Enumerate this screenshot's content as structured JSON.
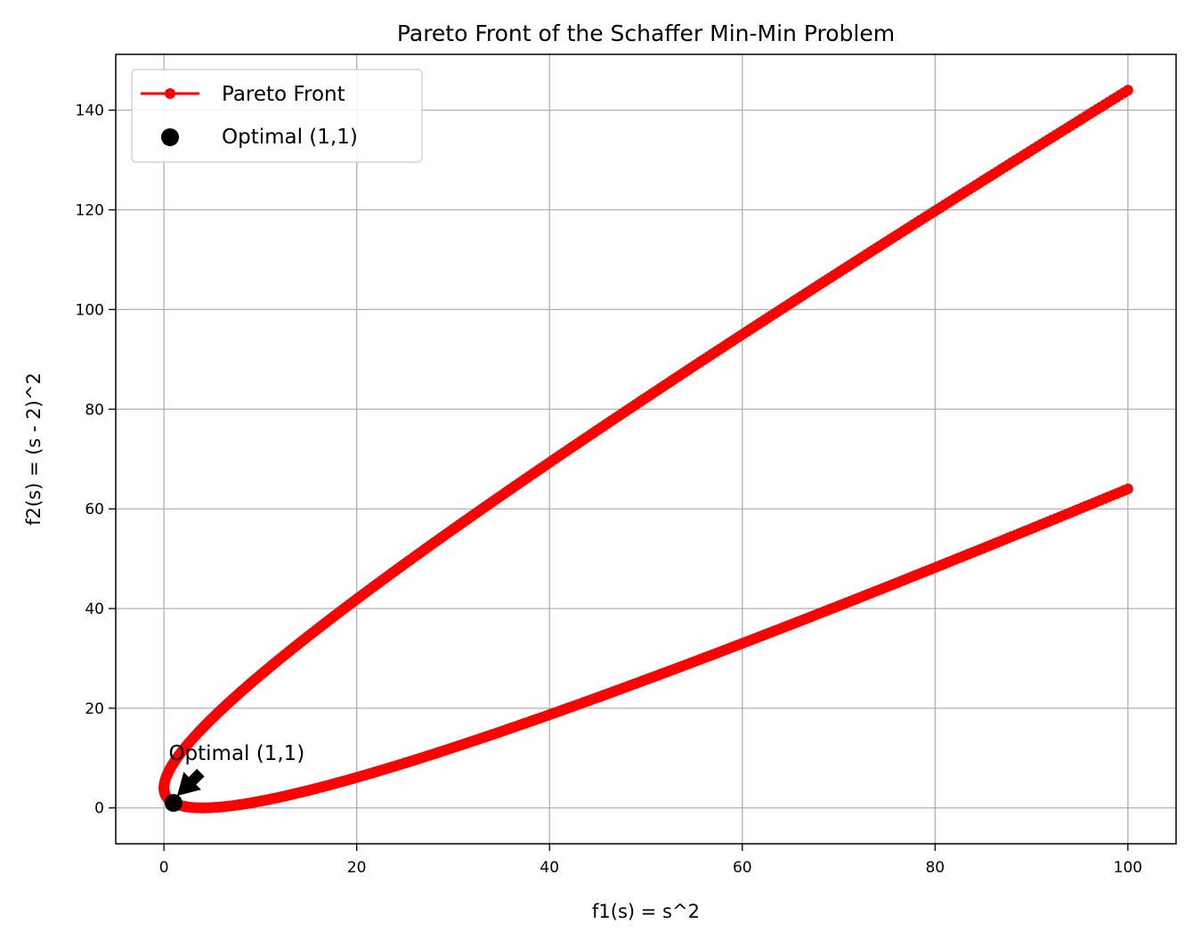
{
  "chart_data": {
    "type": "line",
    "title": "Pareto Front of the Schaffer Min-Min Problem",
    "xlabel": "f1(s) = s^2",
    "ylabel": "f2(s) = (s - 2)^2",
    "xlim": [
      -5,
      105
    ],
    "ylim": [
      -7.2,
      151.2
    ],
    "xticks": [
      0,
      20,
      40,
      60,
      80,
      100
    ],
    "yticks": [
      0,
      20,
      40,
      60,
      80,
      100,
      120,
      140
    ],
    "grid": true,
    "legend_position": "upper left",
    "series": [
      {
        "name": "Pareto Front",
        "color": "#ff0000",
        "marker": "circle",
        "function": "f1 = s^2, f2 = (s - 2)^2",
        "s_range": [
          -10,
          10
        ],
        "points": 1000
      }
    ],
    "optimal_point": {
      "name": "Optimal (1,1)",
      "x": 1,
      "y": 1,
      "color": "#000000"
    },
    "annotation": {
      "text": "Optimal (1,1)",
      "x": 4,
      "y": 11,
      "arrow_to": [
        1,
        1
      ]
    }
  }
}
